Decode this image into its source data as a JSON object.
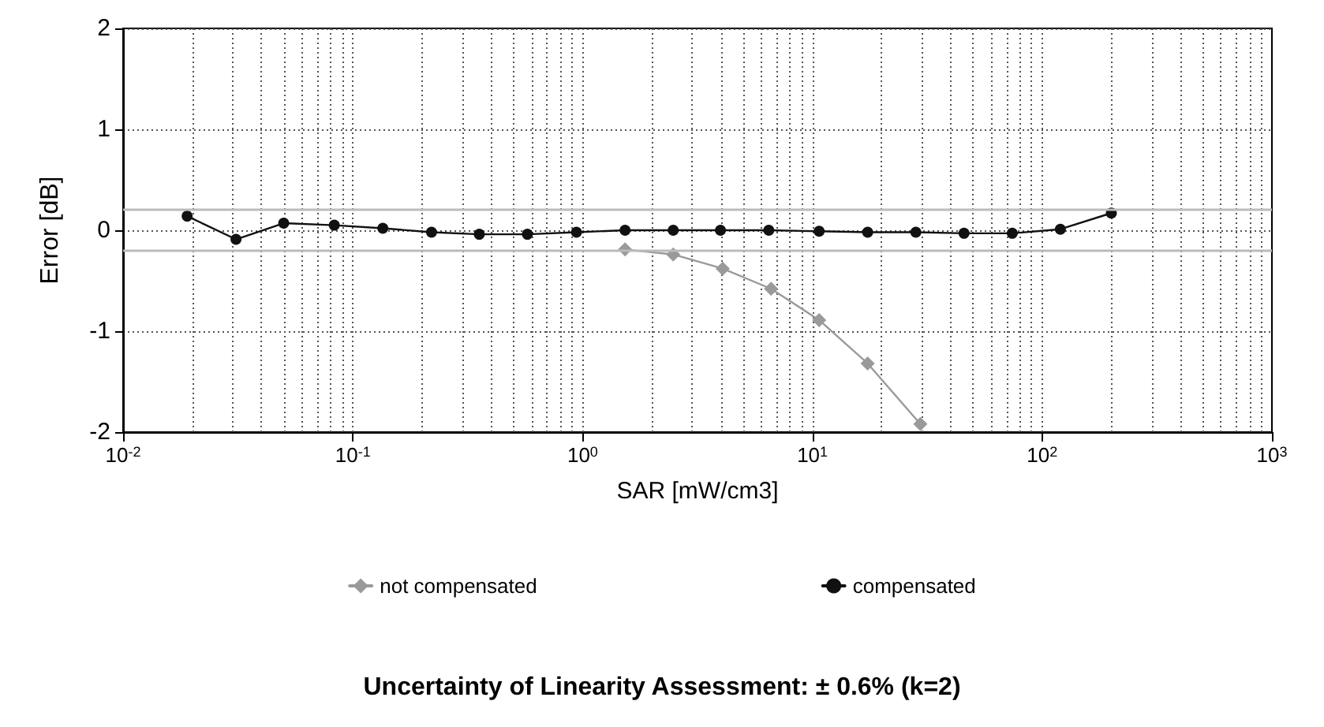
{
  "chart_data": {
    "type": "line",
    "title": "Uncertainty of Linearity Assessment: ± 0.6% (k=2)",
    "xlabel": "SAR [mW/cm3]",
    "ylabel": "Error [dB]",
    "log": "x",
    "xlim": [
      0.01,
      1000
    ],
    "xticks": [
      {
        "value": 0.01,
        "label": "10$^{-2}$"
      },
      {
        "value": 0.1,
        "label": "10$^{-1}$"
      },
      {
        "value": 1,
        "label": "10$^{0}$"
      },
      {
        "value": 10,
        "label": "10$^{1}$"
      },
      {
        "value": 100,
        "label": "10$^{2}$"
      },
      {
        "value": 1000,
        "label": "10$^{3}$"
      }
    ],
    "ylim": [
      -2,
      2
    ],
    "yticks": [
      -2,
      -1,
      0,
      1,
      2
    ],
    "grid": true,
    "legend": "bottom",
    "series": [
      {
        "name": "not compensated",
        "color": "#9a9a9a",
        "marker": "diamond",
        "x": [
          1.53,
          2.48,
          4.07,
          6.61,
          10.7,
          17.4,
          29.5
        ],
        "values": [
          -0.19,
          -0.24,
          -0.38,
          -0.58,
          -0.89,
          -1.32,
          -1.92
        ]
      },
      {
        "name": "compensated",
        "color": "#111111",
        "marker": "circle",
        "x": [
          0.019,
          0.031,
          0.05,
          0.083,
          0.135,
          0.22,
          0.355,
          0.575,
          0.94,
          1.53,
          2.48,
          3.98,
          6.46,
          10.7,
          17.4,
          28.2,
          45.7,
          74.1,
          120,
          200
        ],
        "values": [
          0.14,
          -0.09,
          0.07,
          0.05,
          0.02,
          -0.02,
          -0.04,
          -0.04,
          -0.02,
          0.0,
          0.0,
          0.0,
          0.0,
          -0.01,
          -0.02,
          -0.02,
          -0.03,
          -0.03,
          0.01,
          0.17
        ]
      }
    ],
    "ref_lines": [
      {
        "axis": "y",
        "value": -0.2,
        "color": "#bbbbbb"
      },
      {
        "axis": "y",
        "value": 0.2,
        "color": "#bbbbbb"
      }
    ]
  }
}
